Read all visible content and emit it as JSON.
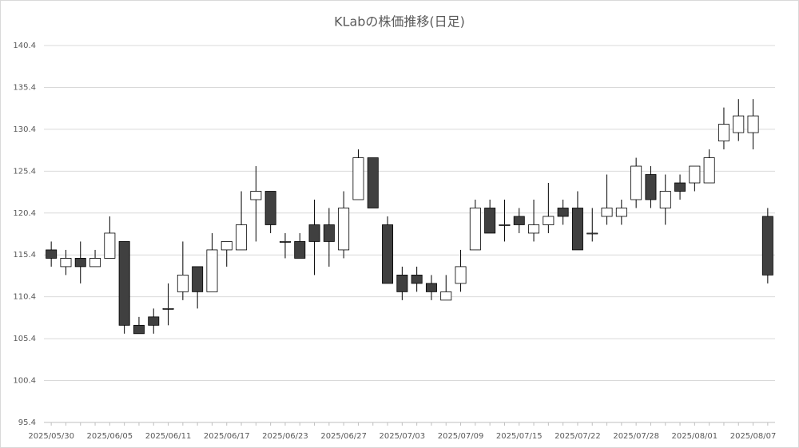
{
  "chart_data": {
    "type": "candlestick",
    "title": "KLabの株価推移(日足)",
    "categories": [
      "2025/05/30",
      null,
      null,
      null,
      "2025/06/05",
      null,
      null,
      null,
      "2025/06/11",
      null,
      null,
      null,
      "2025/06/17",
      null,
      null,
      null,
      "2025/06/23",
      null,
      null,
      null,
      "2025/06/27",
      null,
      null,
      null,
      "2025/07/03",
      null,
      null,
      null,
      "2025/07/09",
      null,
      null,
      null,
      "2025/07/15",
      null,
      null,
      null,
      "2025/07/22",
      null,
      null,
      null,
      "2025/07/28",
      null,
      null,
      null,
      "2025/08/01",
      null,
      null,
      null,
      "2025/08/07",
      null
    ],
    "open": [
      116,
      114,
      115,
      114,
      115,
      117,
      107,
      108,
      109,
      111,
      114,
      111,
      116,
      116,
      122,
      123,
      117,
      117,
      119,
      119,
      116,
      122,
      127,
      119,
      113,
      113,
      112,
      110,
      112,
      116,
      121,
      119,
      120,
      118,
      119,
      121,
      121,
      118,
      120,
      120,
      122,
      125,
      121,
      124,
      124,
      124,
      129,
      130,
      130,
      120
    ],
    "high": [
      117,
      116,
      117,
      116,
      120,
      117,
      108,
      109,
      112,
      117,
      114,
      118,
      117,
      123,
      126,
      123,
      118,
      118,
      122,
      121,
      123,
      128,
      127,
      120,
      114,
      114,
      113,
      113,
      116,
      122,
      122,
      122,
      121,
      122,
      124,
      122,
      123,
      121,
      125,
      122,
      127,
      126,
      125,
      125,
      126,
      128,
      133,
      134,
      134,
      121
    ],
    "low": [
      114,
      113,
      112,
      114,
      115,
      106,
      106,
      106,
      107,
      110,
      109,
      111,
      114,
      116,
      117,
      118,
      115,
      115,
      113,
      114,
      115,
      122,
      121,
      112,
      110,
      111,
      110,
      110,
      111,
      116,
      118,
      117,
      118,
      117,
      118,
      119,
      116,
      117,
      119,
      119,
      121,
      121,
      119,
      122,
      123,
      124,
      128,
      129,
      128,
      112
    ],
    "close": [
      115,
      115,
      114,
      115,
      118,
      107,
      106,
      107,
      109,
      113,
      111,
      116,
      117,
      119,
      123,
      119,
      117,
      115,
      117,
      117,
      121,
      127,
      121,
      112,
      111,
      112,
      111,
      111,
      114,
      121,
      118,
      119,
      119,
      119,
      120,
      120,
      116,
      118,
      121,
      121,
      126,
      122,
      123,
      123,
      126,
      127,
      131,
      132,
      132,
      113
    ],
    "up_color": "#ffffff",
    "down_color": "#404040",
    "edge_color": "#000000",
    "ylim": [
      95.4,
      140.4
    ],
    "yticks": [
      95.4,
      100.4,
      105.4,
      110.4,
      115.4,
      120.4,
      125.4,
      130.4,
      135.4,
      140.4
    ],
    "grid": true
  }
}
